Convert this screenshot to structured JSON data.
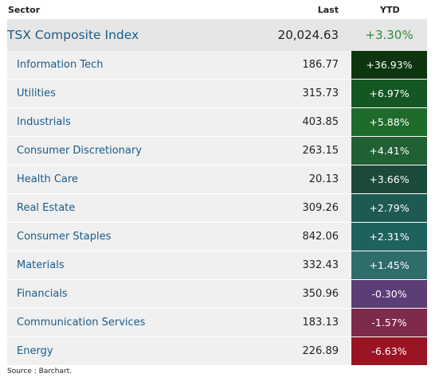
{
  "header": {
    "sector": "Sector",
    "last": "Last",
    "ytd": "YTD"
  },
  "composite": {
    "name": "TSX Composite Index",
    "last": "20,024.63",
    "ytd": "+3.30%",
    "ytd_color": "#2e8b3a"
  },
  "rows": [
    {
      "name": "Information Tech",
      "last": "186.77",
      "ytd": "+36.93%",
      "color": "#0c3510"
    },
    {
      "name": "Utilities",
      "last": "315.73",
      "ytd": "+6.97%",
      "color": "#155724"
    },
    {
      "name": "Industrials",
      "last": "403.85",
      "ytd": "+5.88%",
      "color": "#1e6b2b"
    },
    {
      "name": "Consumer Discretionary",
      "last": "263.15",
      "ytd": "+4.41%",
      "color": "#215f35"
    },
    {
      "name": "Health Care",
      "last": "20.13",
      "ytd": "+3.66%",
      "color": "#1c4a3a"
    },
    {
      "name": "Real Estate",
      "last": "309.26",
      "ytd": "+2.79%",
      "color": "#1e5a52"
    },
    {
      "name": "Consumer Staples",
      "last": "842.06",
      "ytd": "+2.31%",
      "color": "#1f625d"
    },
    {
      "name": "Materials",
      "last": "332.43",
      "ytd": "+1.45%",
      "color": "#2f6d6b"
    },
    {
      "name": "Financials",
      "last": "350.96",
      "ytd": "-0.30%",
      "color": "#5b3d78"
    },
    {
      "name": "Communication Services",
      "last": "183.13",
      "ytd": "-1.57%",
      "color": "#7e2a4a"
    },
    {
      "name": "Energy",
      "last": "226.89",
      "ytd": "-6.63%",
      "color": "#9b1424"
    }
  ],
  "source": "Source : Barchart."
}
